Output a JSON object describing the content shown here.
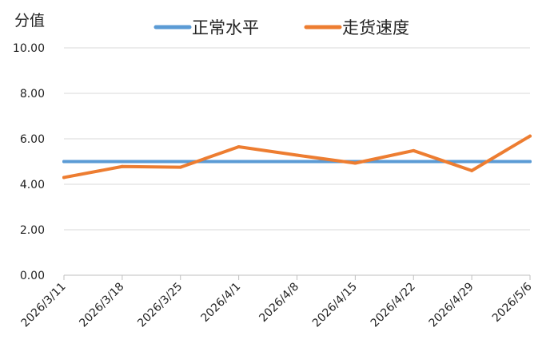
{
  "chart_data": {
    "type": "line",
    "title": "",
    "xlabel": "",
    "ylabel": "分值",
    "categories": [
      "2026/3/11",
      "2026/3/18",
      "2026/3/25",
      "2026/4/1",
      "2026/4/8",
      "2026/4/15",
      "2026/4/22",
      "2026/4/29",
      "2026/5/6"
    ],
    "ylim": [
      0,
      10
    ],
    "yticks": [
      "0.00",
      "2.00",
      "4.00",
      "6.00",
      "8.00",
      "10.00"
    ],
    "grid": true,
    "legend_position": "top-center",
    "series": [
      {
        "name": "正常水平",
        "color": "#5b9bd5",
        "values": [
          5.0,
          5.0,
          5.0,
          5.0,
          5.0,
          5.0,
          5.0,
          5.0,
          5.0
        ]
      },
      {
        "name": "走货速度",
        "color": "#ed7d31",
        "values": [
          4.3,
          4.78,
          4.75,
          5.65,
          5.28,
          4.93,
          5.48,
          4.6,
          6.12
        ]
      }
    ]
  }
}
